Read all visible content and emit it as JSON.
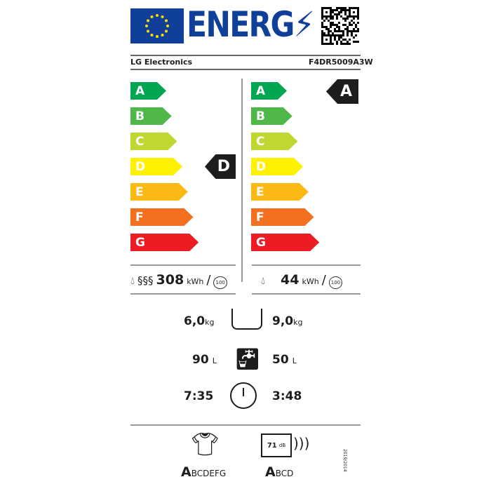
{
  "header": {
    "title": "ENERG",
    "supplier": "LG Electronics",
    "model": "F4DR5009A3W"
  },
  "scale": {
    "letters": [
      "A",
      "B",
      "C",
      "D",
      "E",
      "F",
      "G"
    ],
    "colors": [
      "#00a651",
      "#50b848",
      "#bfd730",
      "#fff200",
      "#fdb913",
      "#f37021",
      "#ed1c24"
    ]
  },
  "left": {
    "class": "D",
    "energy": "308",
    "unit": "kWh",
    "cycles": "100"
  },
  "right": {
    "class": "A",
    "energy": "44",
    "unit": "kWh",
    "cycles": "100"
  },
  "capacity": {
    "wash": "6,0",
    "dry": "9,0",
    "unit": "kg"
  },
  "water": {
    "wash": "90",
    "dry": "50",
    "unit": "L"
  },
  "duration": {
    "wash": "7:35",
    "dry": "3:48"
  },
  "spin": {
    "best": "A",
    "rest": "BCDEFG"
  },
  "noise": {
    "value": "71",
    "unit": "dB",
    "best": "A",
    "rest": "BCD"
  },
  "regulation": "2019/2014"
}
